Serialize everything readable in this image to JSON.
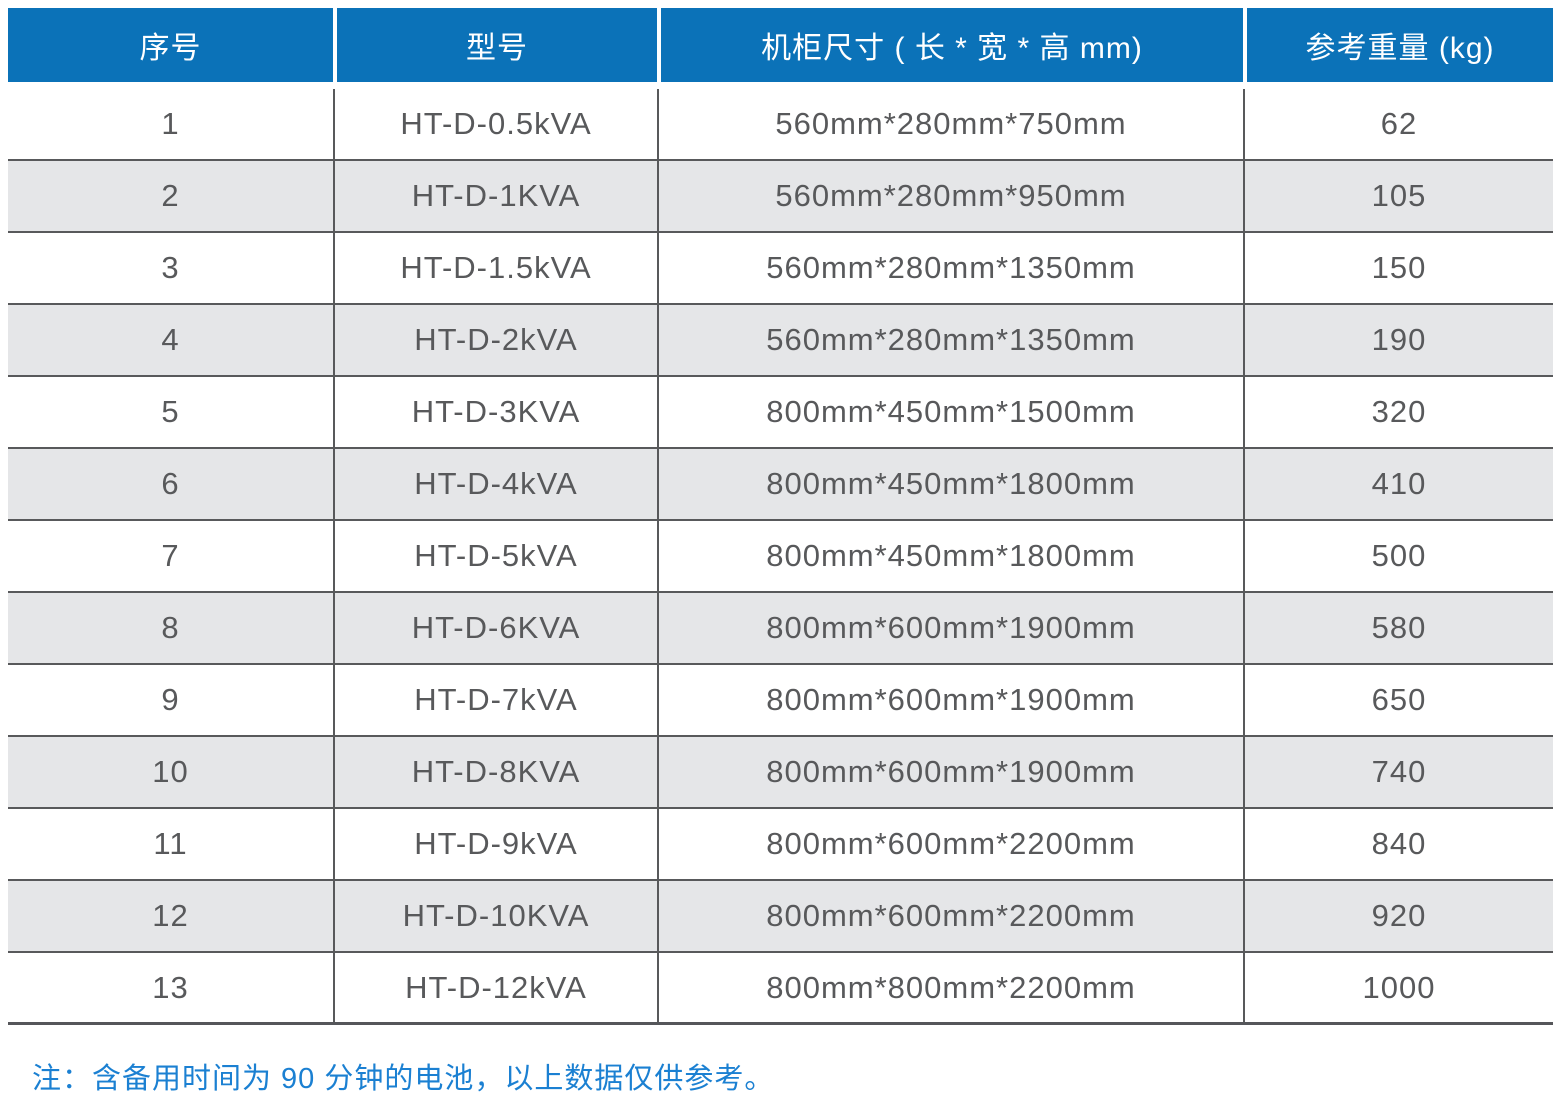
{
  "colors": {
    "header_bg": "#0b72b8",
    "header_text": "#ffffff",
    "row_bg": "#ffffff",
    "row_alt_bg": "#e5e6e8",
    "border": "#58595b",
    "body_text": "#58595b",
    "note_text": "#1b80d2"
  },
  "table": {
    "columns": [
      "序号",
      "型号",
      "机柜尺寸 ( 长 * 宽 * 高 mm)",
      "参考重量 (kg)"
    ],
    "rows": [
      {
        "index": "1",
        "model": "HT-D-0.5kVA",
        "dimensions": "560mm*280mm*750mm",
        "weight": "62"
      },
      {
        "index": "2",
        "model": "HT-D-1KVA",
        "dimensions": "560mm*280mm*950mm",
        "weight": "105"
      },
      {
        "index": "3",
        "model": "HT-D-1.5kVA",
        "dimensions": "560mm*280mm*1350mm",
        "weight": "150"
      },
      {
        "index": "4",
        "model": "HT-D-2kVA",
        "dimensions": "560mm*280mm*1350mm",
        "weight": "190"
      },
      {
        "index": "5",
        "model": "HT-D-3KVA",
        "dimensions": "800mm*450mm*1500mm",
        "weight": "320"
      },
      {
        "index": "6",
        "model": "HT-D-4kVA",
        "dimensions": "800mm*450mm*1800mm",
        "weight": "410"
      },
      {
        "index": "7",
        "model": "HT-D-5kVA",
        "dimensions": "800mm*450mm*1800mm",
        "weight": "500"
      },
      {
        "index": "8",
        "model": "HT-D-6KVA",
        "dimensions": "800mm*600mm*1900mm",
        "weight": "580"
      },
      {
        "index": "9",
        "model": "HT-D-7kVA",
        "dimensions": "800mm*600mm*1900mm",
        "weight": "650"
      },
      {
        "index": "10",
        "model": "HT-D-8KVA",
        "dimensions": "800mm*600mm*1900mm",
        "weight": "740"
      },
      {
        "index": "11",
        "model": "HT-D-9kVA",
        "dimensions": "800mm*600mm*2200mm",
        "weight": "840"
      },
      {
        "index": "12",
        "model": "HT-D-10KVA",
        "dimensions": "800mm*600mm*2200mm",
        "weight": "920"
      },
      {
        "index": "13",
        "model": "HT-D-12kVA",
        "dimensions": "800mm*800mm*2200mm",
        "weight": "1000"
      }
    ]
  },
  "note": "注：含备用时间为 90 分钟的电池，以上数据仅供参考。"
}
